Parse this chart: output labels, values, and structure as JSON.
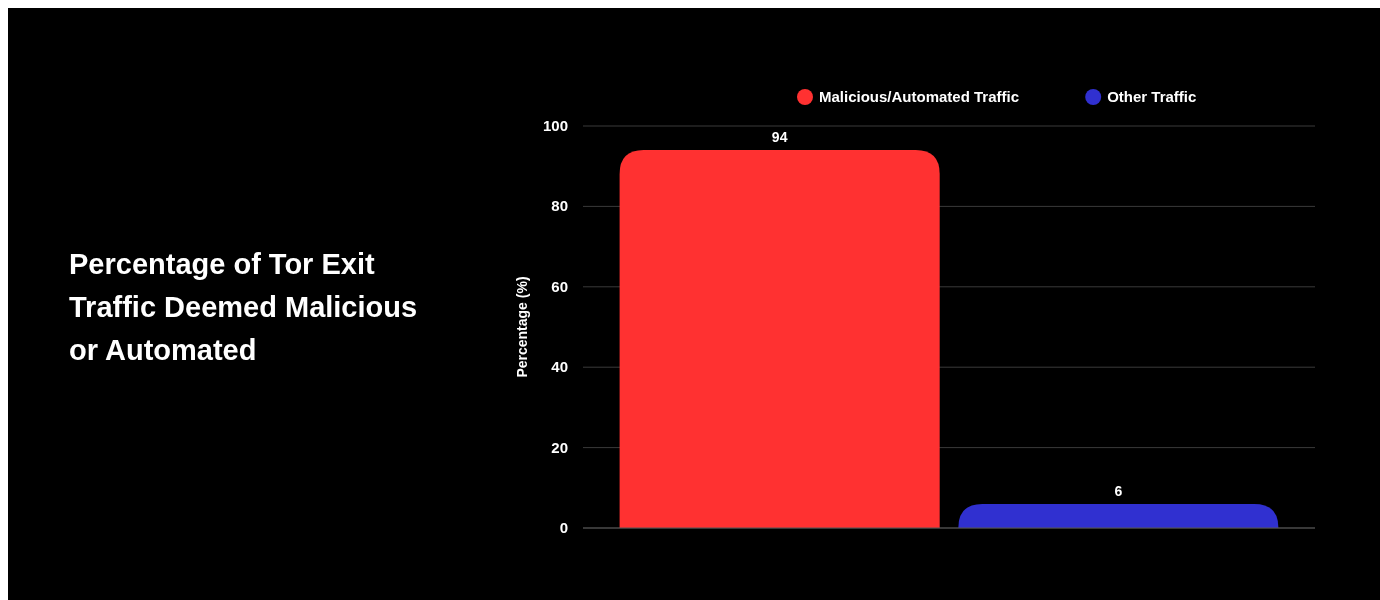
{
  "chart_data": {
    "type": "bar",
    "title": "Percentage of Tor Exit Traffic Deemed Malicious or Automated",
    "ylabel": "Percentage (%)",
    "categories": [
      null
    ],
    "series": [
      {
        "name": "Malicious/Automated Traffic",
        "color": "#ff3131",
        "values": [
          94
        ]
      },
      {
        "name": "Other Traffic",
        "color": "#3030d0",
        "values": [
          6
        ]
      }
    ],
    "ylim": [
      0,
      100
    ],
    "yticks": [
      0,
      20,
      40,
      60,
      80,
      100
    ],
    "grid": "y",
    "legend": "top",
    "data_labels": true
  }
}
